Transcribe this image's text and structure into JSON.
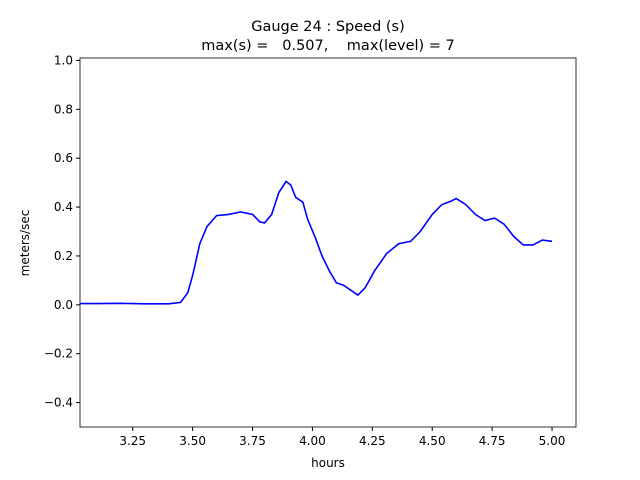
{
  "chart_data": {
    "type": "line",
    "title": "Gauge 24 : Speed (s)",
    "subtitle": "max(s) =   0.507,    max(level) = 7",
    "x_label": "hours",
    "y_label": "meters/sec",
    "x": [
      3.03,
      3.1,
      3.2,
      3.3,
      3.4,
      3.45,
      3.48,
      3.5,
      3.53,
      3.56,
      3.6,
      3.65,
      3.7,
      3.75,
      3.78,
      3.8,
      3.83,
      3.86,
      3.89,
      3.91,
      3.93,
      3.96,
      3.98,
      4.01,
      4.04,
      4.07,
      4.1,
      4.13,
      4.16,
      4.19,
      4.22,
      4.26,
      4.31,
      4.36,
      4.41,
      4.45,
      4.5,
      4.54,
      4.58,
      4.6,
      4.64,
      4.68,
      4.72,
      4.76,
      4.8,
      4.84,
      4.88,
      4.92,
      4.96,
      5.0
    ],
    "series": [
      {
        "color": "#0000ff",
        "values": [
          0.005,
          0.005,
          0.006,
          0.004,
          0.004,
          0.01,
          0.05,
          0.12,
          0.25,
          0.32,
          0.365,
          0.37,
          0.38,
          0.37,
          0.34,
          0.335,
          0.37,
          0.46,
          0.505,
          0.49,
          0.44,
          0.42,
          0.35,
          0.28,
          0.2,
          0.14,
          0.09,
          0.08,
          0.06,
          0.04,
          0.07,
          0.14,
          0.21,
          0.25,
          0.26,
          0.3,
          0.37,
          0.41,
          0.425,
          0.435,
          0.41,
          0.37,
          0.345,
          0.355,
          0.33,
          0.28,
          0.245,
          0.245,
          0.265,
          0.26
        ]
      }
    ],
    "xlim": [
      3.03,
      5.1
    ],
    "ylim": [
      -0.5,
      1.01
    ],
    "xticks": [
      3.25,
      {
        "value": 3.5,
        "label": "3.50"
      },
      3.75,
      {
        "value": 4,
        "label": "4.00"
      },
      4.25,
      {
        "value": 4.5,
        "label": "4.50"
      },
      4.75,
      {
        "value": 5,
        "label": "5.00"
      }
    ],
    "yticks": [
      {
        "value": -0.4,
        "label": "−0.4"
      },
      {
        "value": -0.2,
        "label": "−0.2"
      },
      {
        "value": 0,
        "label": "0.0"
      },
      0.2,
      0.4,
      0.6,
      0.8,
      {
        "value": 1,
        "label": "1.0"
      }
    ]
  }
}
